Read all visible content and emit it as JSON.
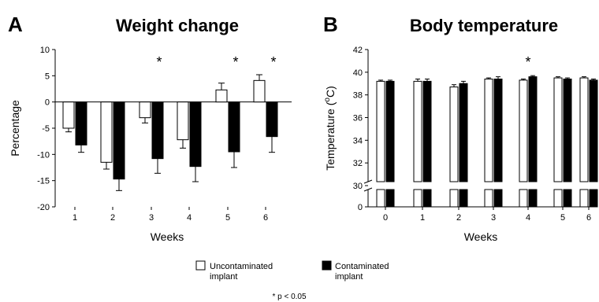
{
  "panels": {
    "A": {
      "letter": "A",
      "title": "Weight change",
      "ylabel": "Percentage",
      "xlabel": "Weeks"
    },
    "B": {
      "letter": "B",
      "title": "Body temperature",
      "ylabel_main": "Temperature (",
      "ylabel_sup": "o",
      "ylabel_tail": "C)",
      "xlabel": "Weeks"
    }
  },
  "legend": {
    "uncontaminated_line1": "Uncontaminated",
    "uncontaminated_line2": "implant",
    "contaminated_line1": "Contaminated",
    "contaminated_line2": "implant"
  },
  "footnote": "* p < 0.05",
  "colors": {
    "uncontaminated": "#ffffff",
    "contaminated": "#000000",
    "outline": "#000000",
    "axis": "#000000"
  },
  "chart_data": [
    {
      "panel": "A",
      "type": "bar",
      "title": "Weight change",
      "xlabel": "Weeks",
      "ylabel": "Percentage",
      "ylim": [
        -20,
        10
      ],
      "yticks": [
        10,
        5,
        0,
        -5,
        -10,
        -15,
        -20
      ],
      "categories": [
        "1",
        "2",
        "3",
        "4",
        "5",
        "6"
      ],
      "series": [
        {
          "name": "Uncontaminated implant",
          "values": [
            -5.0,
            -11.5,
            -3.0,
            -7.2,
            2.3,
            4.1
          ],
          "errors": [
            0.7,
            1.3,
            1.0,
            1.6,
            1.3,
            1.1
          ]
        },
        {
          "name": "Contaminated implant",
          "values": [
            -8.2,
            -14.7,
            -10.8,
            -12.3,
            -9.5,
            -6.6
          ],
          "errors": [
            1.4,
            2.2,
            2.8,
            2.9,
            3.0,
            3.0
          ]
        }
      ],
      "significance": [
        "",
        "",
        "*",
        "",
        "*",
        "*"
      ],
      "grid": false,
      "legend": "bottom"
    },
    {
      "panel": "B",
      "type": "bar",
      "title": "Body temperature",
      "xlabel": "Weeks",
      "ylabel": "Temperature (°C)",
      "ylim": [
        0,
        42
      ],
      "axis_break": [
        0,
        30
      ],
      "yticks": [
        42,
        40,
        38,
        36,
        34,
        32,
        30,
        0
      ],
      "categories": [
        "0",
        "1",
        "2",
        "3",
        "4",
        "5",
        "6"
      ],
      "series": [
        {
          "name": "Uncontaminated implant",
          "values": [
            39.2,
            39.2,
            38.7,
            39.4,
            39.3,
            39.5,
            39.5
          ],
          "errors": [
            0.1,
            0.2,
            0.2,
            0.1,
            0.1,
            0.1,
            0.1
          ]
        },
        {
          "name": "Contaminated implant",
          "values": [
            39.2,
            39.2,
            39.0,
            39.4,
            39.6,
            39.4,
            39.3
          ],
          "errors": [
            0.1,
            0.2,
            0.2,
            0.2,
            0.1,
            0.1,
            0.1
          ]
        }
      ],
      "significance": [
        "",
        "",
        "",
        "",
        "*",
        "",
        ""
      ],
      "grid": false,
      "legend": "bottom"
    }
  ]
}
